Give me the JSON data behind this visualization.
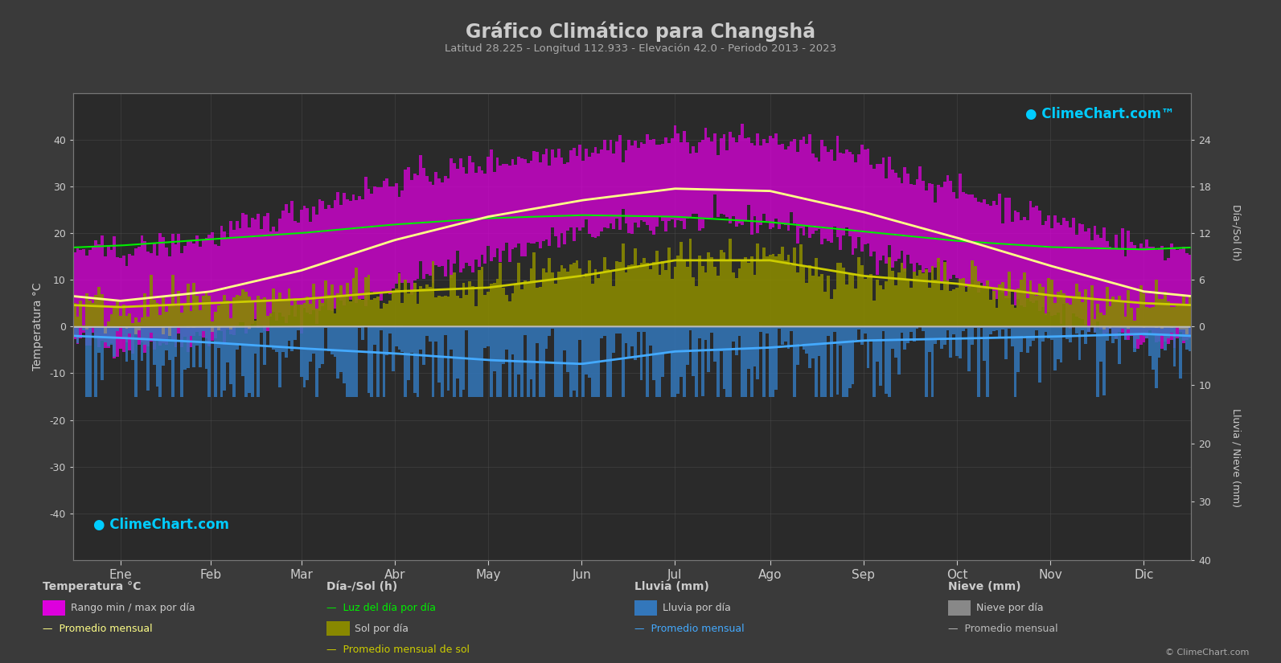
{
  "title": "Gráfico Climático para Changshá",
  "subtitle": "Latitud 28.225 - Longitud 112.933 - Elevación 42.0 - Periodo 2013 - 2023",
  "background_color": "#3a3a3a",
  "plot_bg_color": "#2a2a2a",
  "grid_color": "#505050",
  "text_color": "#cccccc",
  "months": [
    "Ene",
    "Feb",
    "Mar",
    "Abr",
    "May",
    "Jun",
    "Jul",
    "Ago",
    "Sep",
    "Oct",
    "Nov",
    "Dic"
  ],
  "days_in_month": [
    31,
    28,
    31,
    30,
    31,
    30,
    31,
    31,
    30,
    31,
    30,
    31
  ],
  "temp_ylim": [
    -50,
    50
  ],
  "monthly_avg_temp": [
    5.5,
    7.5,
    12.0,
    18.5,
    23.5,
    27.0,
    29.5,
    29.0,
    24.5,
    19.0,
    13.0,
    7.5
  ],
  "monthly_avg_sunshine_h": [
    2.5,
    3.0,
    3.5,
    4.5,
    5.0,
    6.5,
    8.5,
    8.5,
    6.5,
    5.5,
    4.0,
    3.0
  ],
  "monthly_daylight_h": [
    10.4,
    11.2,
    12.0,
    13.1,
    13.9,
    14.3,
    14.1,
    13.4,
    12.2,
    11.0,
    10.2,
    9.9
  ],
  "monthly_avg_rain_mm": [
    58,
    82,
    112,
    138,
    172,
    192,
    128,
    108,
    72,
    62,
    52,
    38
  ],
  "monthly_avg_snow_mm": [
    3,
    2,
    0,
    0,
    0,
    0,
    0,
    0,
    0,
    0,
    0,
    1
  ],
  "monthly_tmin_abs": [
    -4.0,
    -2.0,
    2.5,
    8.5,
    15.0,
    20.0,
    22.5,
    22.5,
    17.0,
    10.0,
    2.5,
    -3.0
  ],
  "monthly_tmax_abs": [
    16.0,
    19.0,
    25.0,
    31.0,
    35.0,
    38.0,
    40.0,
    40.0,
    36.0,
    29.0,
    23.0,
    17.0
  ],
  "colors": {
    "temp_range_bar": "#dd00dd",
    "temp_avg_line": "#ffff88",
    "daylight_line": "#00ee00",
    "sunshine_bar": "#888800",
    "sunshine_avg_line": "#cccc00",
    "rain_bar": "#3377bb",
    "rain_avg_line": "#44aaff",
    "snow_bar": "#888888",
    "snow_avg_line": "#bbbbbb",
    "logo_color": "#00ccff"
  },
  "right_axis_h_ticks": [
    0,
    6,
    12,
    18,
    24
  ],
  "right_axis_rain_ticks": [
    0,
    10,
    20,
    30,
    40
  ],
  "daylight_to_temp_scale": 40,
  "rain_to_temp_scale": -50
}
